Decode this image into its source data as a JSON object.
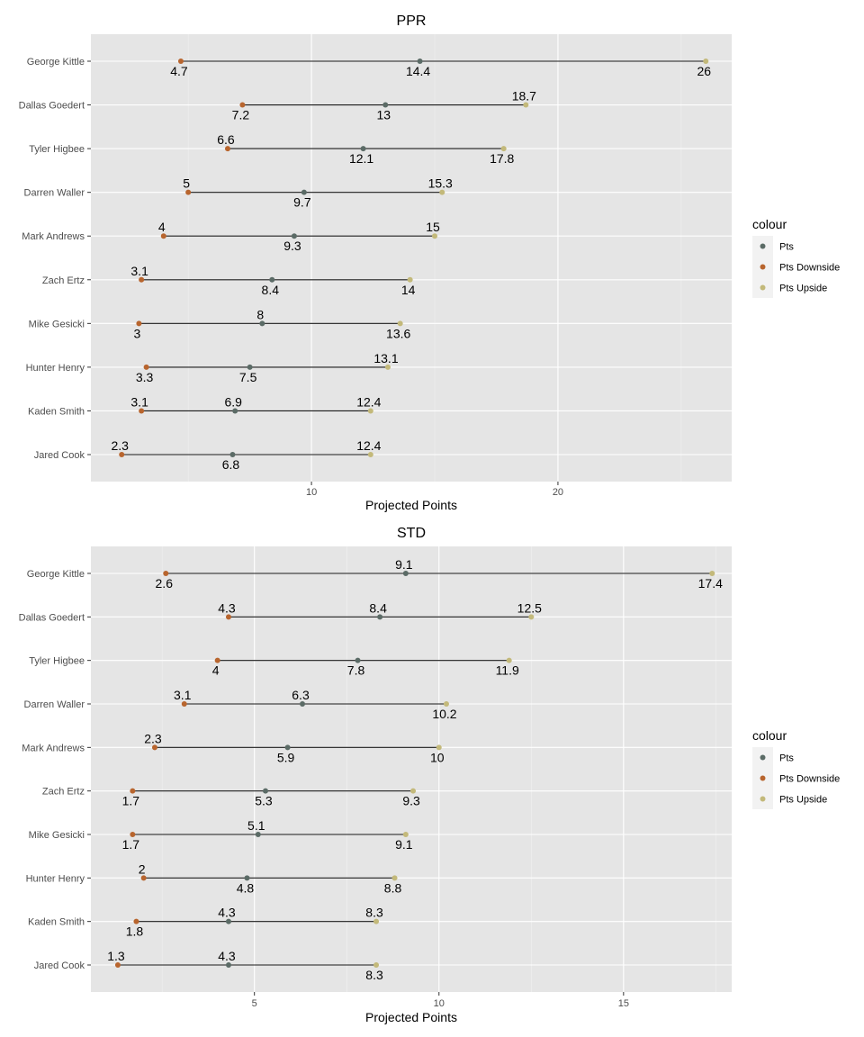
{
  "chart_data": [
    {
      "type": "dumbbell",
      "title": "PPR",
      "xlabel": "Projected Points",
      "ylabel": "",
      "xlim": [
        1.05,
        27.05
      ],
      "xticks": [
        10,
        20
      ],
      "xtick_labels": [
        "10",
        "20"
      ],
      "grid": true,
      "legend_title": "colour",
      "legend_position": "right",
      "categories": [
        "George Kittle",
        "Dallas Goedert",
        "Tyler Higbee",
        "Darren Waller",
        "Mark Andrews",
        "Zach Ertz",
        "Mike Gesicki",
        "Hunter Henry",
        "Kaden Smith",
        "Jared Cook"
      ],
      "series": [
        {
          "name": "Pts",
          "color": "#5b6b66",
          "values": [
            14.4,
            13,
            12.1,
            9.7,
            9.3,
            8.4,
            8,
            7.5,
            6.9,
            6.8
          ],
          "labels": [
            "14.4",
            "13",
            "12.1",
            "9.7",
            "9.3",
            "8.4",
            "8",
            "7.5",
            "6.9",
            "6.8"
          ]
        },
        {
          "name": "Pts Downside",
          "color": "#b8652e",
          "values": [
            4.7,
            7.2,
            6.6,
            5,
            4,
            3.1,
            3,
            3.3,
            3.1,
            2.3
          ],
          "labels": [
            "4.7",
            "7.2",
            "6.6",
            "5",
            "4",
            "3.1",
            "3",
            "3.3",
            "3.1",
            "2.3"
          ]
        },
        {
          "name": "Pts Upside",
          "color": "#c3b97a",
          "values": [
            26,
            18.7,
            17.8,
            15.3,
            15,
            14,
            13.6,
            13.1,
            12.4,
            12.4
          ],
          "labels": [
            "26",
            "18.7",
            "17.8",
            "15.3",
            "15",
            "14",
            "13.6",
            "13.1",
            "12.4",
            "12.4"
          ]
        }
      ],
      "label_side": [
        [
          "below",
          "below",
          "below"
        ],
        [
          "below",
          "below",
          "above"
        ],
        [
          "below",
          "above",
          "below"
        ],
        [
          "below",
          "above",
          "above"
        ],
        [
          "below",
          "above",
          "above"
        ],
        [
          "below",
          "above",
          "below"
        ],
        [
          "above",
          "below",
          "below"
        ],
        [
          "below",
          "below",
          "above"
        ],
        [
          "above",
          "above",
          "above"
        ],
        [
          "below",
          "above",
          "above"
        ]
      ]
    },
    {
      "type": "dumbbell",
      "title": "STD",
      "xlabel": "Projected Points",
      "ylabel": "",
      "xlim": [
        0.57,
        17.93
      ],
      "xticks": [
        5,
        10,
        15
      ],
      "xtick_labels": [
        "5",
        "10",
        "15"
      ],
      "grid": true,
      "legend_title": "colour",
      "legend_position": "right",
      "categories": [
        "George Kittle",
        "Dallas Goedert",
        "Tyler Higbee",
        "Darren Waller",
        "Mark Andrews",
        "Zach Ertz",
        "Mike Gesicki",
        "Hunter Henry",
        "Kaden Smith",
        "Jared Cook"
      ],
      "series": [
        {
          "name": "Pts",
          "color": "#5b6b66",
          "values": [
            9.1,
            8.4,
            7.8,
            6.3,
            5.9,
            5.3,
            5.1,
            4.8,
            4.3,
            4.3
          ],
          "labels": [
            "9.1",
            "8.4",
            "7.8",
            "6.3",
            "5.9",
            "5.3",
            "5.1",
            "4.8",
            "4.3",
            "4.3"
          ]
        },
        {
          "name": "Pts Downside",
          "color": "#b8652e",
          "values": [
            2.6,
            4.3,
            4,
            3.1,
            2.3,
            1.7,
            1.7,
            2,
            1.8,
            1.3
          ],
          "labels": [
            "2.6",
            "4.3",
            "4",
            "3.1",
            "2.3",
            "1.7",
            "1.7",
            "2",
            "1.8",
            "1.3"
          ]
        },
        {
          "name": "Pts Upside",
          "color": "#c3b97a",
          "values": [
            17.4,
            12.5,
            11.9,
            10.2,
            10,
            9.3,
            9.1,
            8.8,
            8.3,
            8.3
          ],
          "labels": [
            "17.4",
            "12.5",
            "11.9",
            "10.2",
            "10",
            "9.3",
            "9.1",
            "8.8",
            "8.3",
            "8.3"
          ]
        }
      ],
      "label_side": [
        [
          "above",
          "below",
          "below"
        ],
        [
          "above",
          "above",
          "above"
        ],
        [
          "below",
          "below",
          "below"
        ],
        [
          "above",
          "above",
          "below"
        ],
        [
          "below",
          "above",
          "below"
        ],
        [
          "below",
          "below",
          "below"
        ],
        [
          "above",
          "below",
          "below"
        ],
        [
          "below",
          "above",
          "below"
        ],
        [
          "above",
          "below",
          "above"
        ],
        [
          "above",
          "above",
          "below"
        ]
      ]
    }
  ]
}
